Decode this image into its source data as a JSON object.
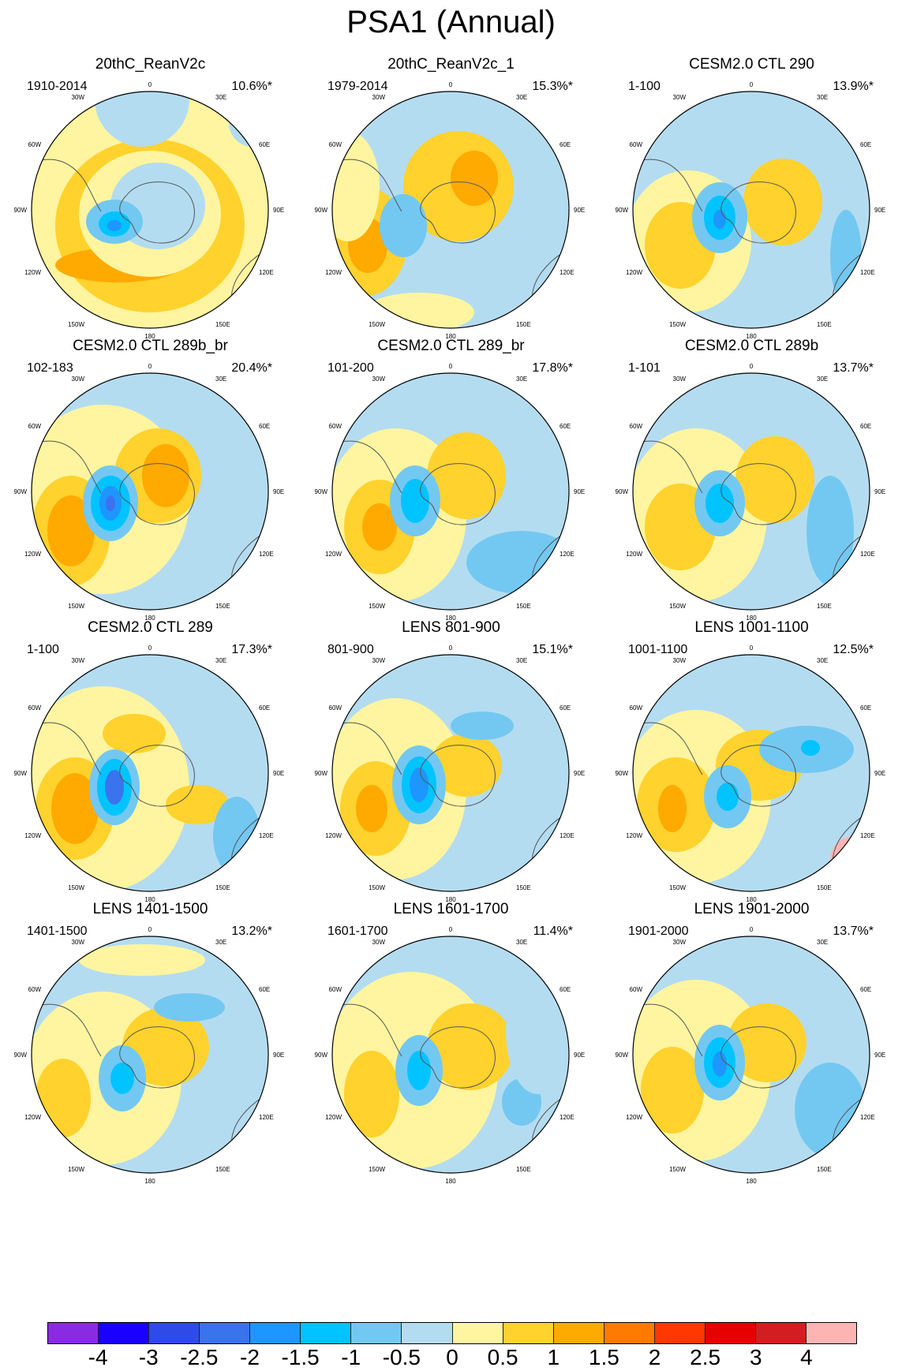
{
  "figure": {
    "title": "PSA1 (Annual)"
  },
  "map_labels": {
    "top": "0",
    "top_left": "30W",
    "top_right": "30E",
    "upper_left": "60W",
    "upper_right": "60E",
    "left": "90W",
    "right": "90E",
    "lower_left": "120W",
    "lower_right": "120E",
    "bottom_left": "150W",
    "bottom_right": "150E",
    "bottom": "180"
  },
  "panels": [
    {
      "title": "20thC_ReanV2c",
      "period": "1910-2014",
      "variance": "10.6%*"
    },
    {
      "title": "20thC_ReanV2c_1",
      "period": "1979-2014",
      "variance": "15.3%*"
    },
    {
      "title": "CESM2.0 CTL 290",
      "period": "1-100",
      "variance": "13.9%*"
    },
    {
      "title": "CESM2.0 CTL 289b_br",
      "period": "102-183",
      "variance": "20.4%*"
    },
    {
      "title": "CESM2.0 CTL 289_br",
      "period": "101-200",
      "variance": "17.8%*"
    },
    {
      "title": "CESM2.0 CTL 289b",
      "period": "1-101",
      "variance": "13.7%*"
    },
    {
      "title": "CESM2.0 CTL 289",
      "period": "1-100",
      "variance": "17.3%*"
    },
    {
      "title": "LENS 801-900",
      "period": "801-900",
      "variance": "15.1%*"
    },
    {
      "title": "LENS 1001-1100",
      "period": "1001-1100",
      "variance": "12.5%*"
    },
    {
      "title": "LENS 1401-1500",
      "period": "1401-1500",
      "variance": "13.2%*"
    },
    {
      "title": "LENS 1601-1700",
      "period": "1601-1700",
      "variance": "11.4%*"
    },
    {
      "title": "LENS 1901-2000",
      "period": "1901-2000",
      "variance": "13.7%*"
    }
  ],
  "colorbar": {
    "colors": [
      "#8a2be2",
      "#1a00ff",
      "#2e4ae8",
      "#3a73ee",
      "#1e96ff",
      "#00c3ff",
      "#73c8f2",
      "#b4dcf0",
      "#fff5a0",
      "#ffd22d",
      "#ffaa00",
      "#ff7a00",
      "#ff3700",
      "#e60000",
      "#d21e1e",
      "#ffb4b4"
    ],
    "labels": [
      "-4",
      "-3",
      "-2.5",
      "-2",
      "-1.5",
      "-1",
      "-0.5",
      "0",
      "0.5",
      "1",
      "1.5",
      "2",
      "2.5",
      "3",
      "4"
    ]
  }
}
